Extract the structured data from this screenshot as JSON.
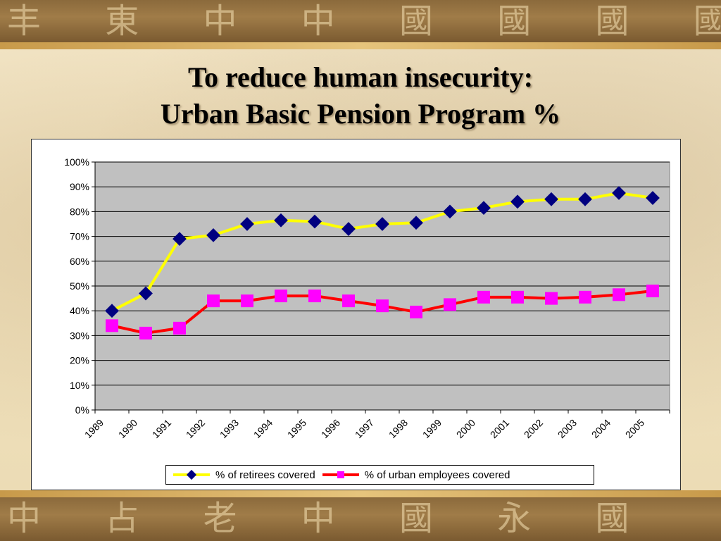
{
  "slide": {
    "title_line1": "To reduce human insecurity:",
    "title_line2": "Urban Basic Pension Program %",
    "decor_glyphs": "丰 東 中 中 國 國 國 國",
    "decor_glyphs_bottom": "中 占 老 中 國 永 國"
  },
  "colors": {
    "retirees_line": "#ffff00",
    "retirees_marker": "#000080",
    "employees_line": "#ff0000",
    "employees_marker": "#ff00ff",
    "plot_background": "#c0c0c0"
  },
  "chart_data": {
    "type": "line",
    "x": [
      "1989",
      "1990",
      "1991",
      "1992",
      "1993",
      "1994",
      "1995",
      "1996",
      "1997",
      "1998",
      "1999",
      "2000",
      "2001",
      "2002",
      "2003",
      "2004",
      "2005"
    ],
    "series": [
      {
        "name": "% of retirees covered",
        "marker": "diamond",
        "values": [
          40,
          47,
          69,
          70.5,
          75,
          76.5,
          76,
          73,
          75,
          75.5,
          80,
          81.5,
          84,
          85,
          85,
          87.5,
          85.5
        ]
      },
      {
        "name": "% of urban employees covered",
        "marker": "square",
        "values": [
          34,
          31,
          33,
          44,
          44,
          46,
          46,
          44,
          42,
          39.5,
          42.5,
          45.5,
          45.5,
          45,
          45.5,
          46.5,
          48
        ]
      }
    ],
    "y_ticks": [
      "0%",
      "10%",
      "20%",
      "30%",
      "40%",
      "50%",
      "60%",
      "70%",
      "80%",
      "90%",
      "100%"
    ],
    "ylim": [
      0,
      100
    ],
    "grid": true,
    "legend_position": "bottom",
    "title": "",
    "xlabel": "",
    "ylabel": ""
  }
}
